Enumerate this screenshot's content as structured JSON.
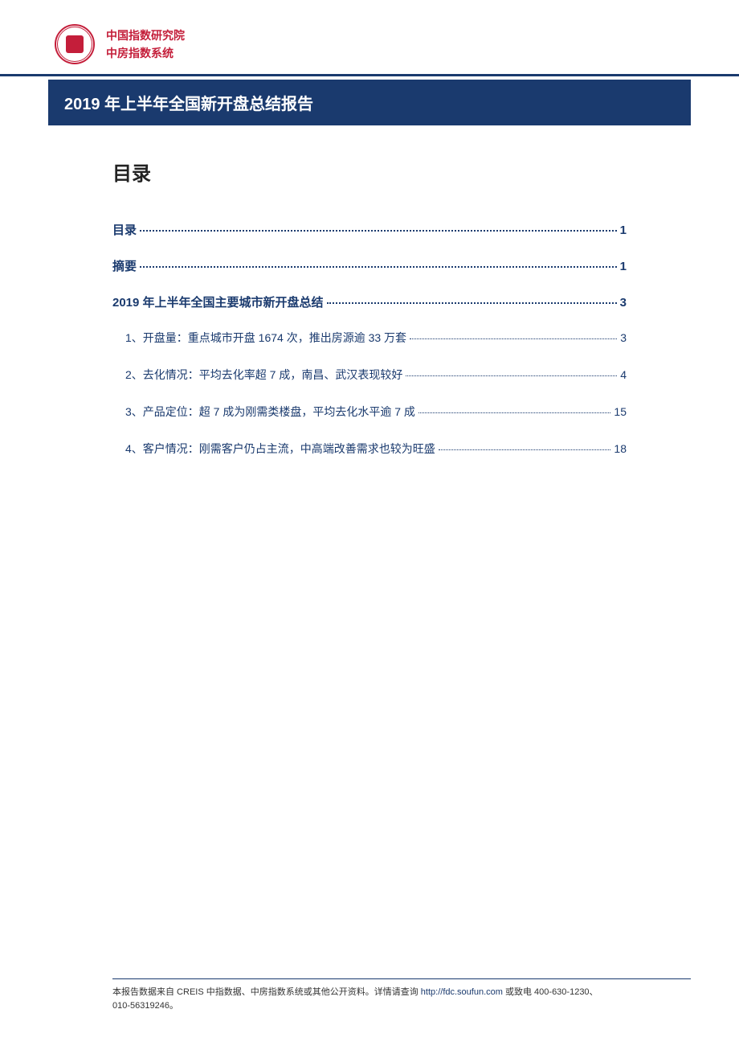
{
  "header": {
    "org_line1": "中国指数研究院",
    "org_line2": "中房指数系统",
    "seal_color": "#c41e3a"
  },
  "title_bar": {
    "text": "2019 年上半年全国新开盘总结报告",
    "bg_color": "#1a3a6e",
    "text_color": "#ffffff"
  },
  "toc": {
    "heading": "目录",
    "entries": [
      {
        "level": 0,
        "label": "目录",
        "page": "1"
      },
      {
        "level": 0,
        "label": "摘要",
        "page": "1"
      },
      {
        "level": 0,
        "label": "2019 年上半年全国主要城市新开盘总结",
        "page": "3"
      },
      {
        "level": 1,
        "label": "1、开盘量：重点城市开盘 1674 次，推出房源逾 33 万套",
        "page": "3"
      },
      {
        "level": 1,
        "label": "2、去化情况：平均去化率超 7 成，南昌、武汉表现较好",
        "page": "4"
      },
      {
        "level": 1,
        "label": "3、产品定位：超 7 成为刚需类楼盘，平均去化水平逾 7 成",
        "page": "15"
      },
      {
        "level": 1,
        "label": "4、客户情况：刚需客户仍占主流，中高端改善需求也较为旺盛",
        "page": "18"
      }
    ],
    "link_color": "#1a3a6e"
  },
  "footer": {
    "prefix": "本报告数据来自 CREIS 中指数据、中房指数系统或其他公开资料。详情请查询 ",
    "url": "http://fdc.soufun.com",
    "mid": " 或致电 ",
    "phone1": "400-630-1230、",
    "phone2": "010-56319246。"
  }
}
